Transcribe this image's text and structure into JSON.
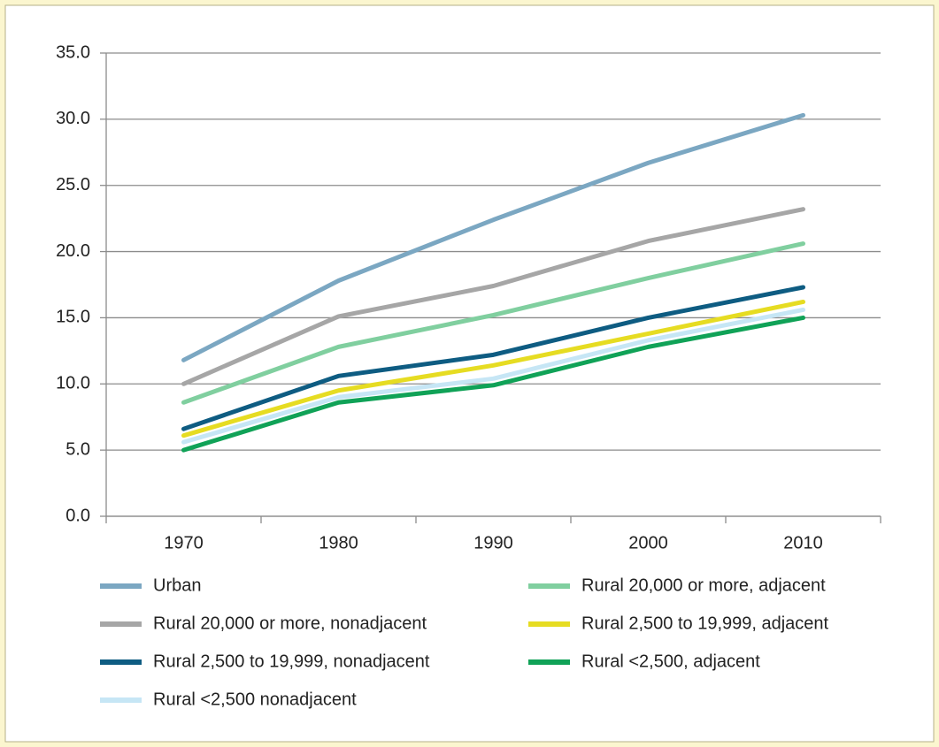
{
  "chart_data": {
    "type": "line",
    "categories": [
      "1970",
      "1980",
      "1990",
      "2000",
      "2010"
    ],
    "series": [
      {
        "name": "Urban",
        "color": "#7ba7c2",
        "values": [
          11.8,
          17.8,
          22.4,
          26.7,
          30.3
        ]
      },
      {
        "name": "Rural 20,000 or more, adjacent",
        "color": "#80cf9f",
        "values": [
          8.6,
          12.8,
          15.2,
          18.0,
          20.6
        ]
      },
      {
        "name": "Rural 20,000 or more, nonadjacent",
        "color": "#a6a6a6",
        "values": [
          10.0,
          15.1,
          17.4,
          20.8,
          23.2
        ]
      },
      {
        "name": "Rural 2,500 to 19,999, adjacent",
        "color": "#e6dc22",
        "values": [
          6.1,
          9.5,
          11.4,
          13.8,
          16.2
        ]
      },
      {
        "name": "Rural 2,500 to 19,999, nonadjacent",
        "color": "#0e5c82",
        "values": [
          6.6,
          10.6,
          12.2,
          15.0,
          17.3
        ]
      },
      {
        "name": "Rural <2,500, adjacent",
        "color": "#10a257",
        "values": [
          5.0,
          8.6,
          9.9,
          12.8,
          15.0
        ]
      },
      {
        "name": "Rural <2,500 nonadjacent",
        "color": "#c6e6f5",
        "values": [
          5.6,
          9.0,
          10.4,
          13.3,
          15.6
        ]
      }
    ],
    "ylim": [
      0,
      35
    ],
    "yticks": [
      {
        "value": 0,
        "label": "0.0"
      },
      {
        "value": 5,
        "label": "5.0"
      },
      {
        "value": 10,
        "label": "10.0"
      },
      {
        "value": 15,
        "label": "15.0"
      },
      {
        "value": 20,
        "label": "20.0"
      },
      {
        "value": 25,
        "label": "25.0"
      },
      {
        "value": 30,
        "label": "30.0"
      },
      {
        "value": 35,
        "label": "35.0"
      }
    ],
    "grid": true
  }
}
